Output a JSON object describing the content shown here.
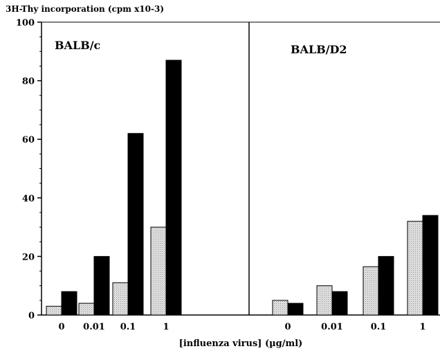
{
  "chart_data": {
    "type": "bar",
    "ylabel": "3H-Thy incorporation (cpm x10-3)",
    "xlabel": "[influenza virus] (µg/ml)",
    "ylim": [
      0,
      100
    ],
    "yticks": [
      0,
      20,
      40,
      60,
      80,
      100
    ],
    "categories": [
      "0",
      "0.01",
      "0.1",
      "1"
    ],
    "colors": {
      "series_a": "#d4d4d4",
      "series_b": "#000000"
    },
    "panels": [
      {
        "title": "BALB/c",
        "series": [
          {
            "values": [
              3,
              4,
              11,
              30
            ]
          },
          {
            "values": [
              8,
              20,
              62,
              87
            ]
          }
        ]
      },
      {
        "title": "BALB/D2",
        "series": [
          {
            "values": [
              5,
              10,
              16.5,
              32
            ]
          },
          {
            "values": [
              4,
              8,
              20,
              34
            ]
          }
        ]
      }
    ]
  }
}
